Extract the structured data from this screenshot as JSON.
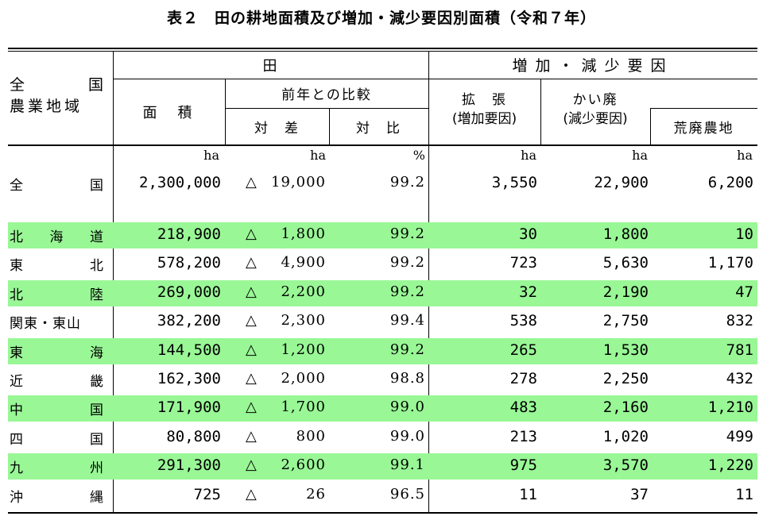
{
  "title": "表２　田の耕地面積及び増加・減少要因別面積（令和７年）",
  "highlight_color": "#99f796",
  "header": {
    "region_line1": [
      "全",
      "国"
    ],
    "region_line2": "農業地域",
    "ta": "田",
    "factors": "増加・減少要因",
    "area": "面　積",
    "comparison": "前年との比較",
    "diff": "対　差",
    "ratio": "対　比",
    "expansion_l1": "拡　張",
    "expansion_l2": "(増加要因)",
    "abandon_l1": "かい廃",
    "abandon_l2": "(減少要因)",
    "wasteland": "荒廃農地"
  },
  "units": {
    "area": "ha",
    "diff": "ha",
    "ratio": "%",
    "expansion": "ha",
    "abandon": "ha",
    "wasteland": "ha"
  },
  "national": {
    "name": [
      "全",
      "国"
    ],
    "area": "2,300,000",
    "triangle": "△",
    "diff": "19,000",
    "ratio": "99.2",
    "expansion": "3,550",
    "abandon": "22,900",
    "wasteland": "6,200"
  },
  "rows": [
    {
      "name": [
        "北",
        "海",
        "道"
      ],
      "area": "218,900",
      "triangle": "△",
      "diff": "1,800",
      "ratio": "99.2",
      "expansion": "30",
      "abandon": "1,800",
      "wasteland": "10",
      "highlight": true
    },
    {
      "name": [
        "東",
        "北"
      ],
      "area": "578,200",
      "triangle": "△",
      "diff": "4,900",
      "ratio": "99.2",
      "expansion": "723",
      "abandon": "5,630",
      "wasteland": "1,170",
      "highlight": false
    },
    {
      "name": [
        "北",
        "陸"
      ],
      "area": "269,000",
      "triangle": "△",
      "diff": "2,200",
      "ratio": "99.2",
      "expansion": "32",
      "abandon": "2,190",
      "wasteland": "47",
      "highlight": true
    },
    {
      "name": [
        "関東・東山"
      ],
      "area": "382,200",
      "triangle": "△",
      "diff": "2,300",
      "ratio": "99.4",
      "expansion": "538",
      "abandon": "2,750",
      "wasteland": "832",
      "highlight": false
    },
    {
      "name": [
        "東",
        "海"
      ],
      "area": "144,500",
      "triangle": "△",
      "diff": "1,200",
      "ratio": "99.2",
      "expansion": "265",
      "abandon": "1,530",
      "wasteland": "781",
      "highlight": true
    },
    {
      "name": [
        "近",
        "畿"
      ],
      "area": "162,300",
      "triangle": "△",
      "diff": "2,000",
      "ratio": "98.8",
      "expansion": "278",
      "abandon": "2,250",
      "wasteland": "432",
      "highlight": false
    },
    {
      "name": [
        "中",
        "国"
      ],
      "area": "171,900",
      "triangle": "△",
      "diff": "1,700",
      "ratio": "99.0",
      "expansion": "483",
      "abandon": "2,160",
      "wasteland": "1,210",
      "highlight": true
    },
    {
      "name": [
        "四",
        "国"
      ],
      "area": "80,800",
      "triangle": "△",
      "diff": "800",
      "ratio": "99.0",
      "expansion": "213",
      "abandon": "1,020",
      "wasteland": "499",
      "highlight": false
    },
    {
      "name": [
        "九",
        "州"
      ],
      "area": "291,300",
      "triangle": "△",
      "diff": "2,600",
      "ratio": "99.1",
      "expansion": "975",
      "abandon": "3,570",
      "wasteland": "1,220",
      "highlight": true
    },
    {
      "name": [
        "沖",
        "縄"
      ],
      "area": "725",
      "triangle": "△",
      "diff": "26",
      "ratio": "96.5",
      "expansion": "11",
      "abandon": "37",
      "wasteland": "11",
      "highlight": false
    }
  ]
}
